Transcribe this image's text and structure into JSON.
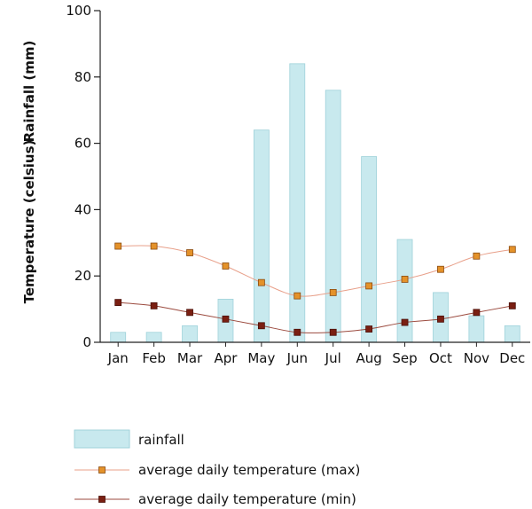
{
  "chart_data": {
    "type": "bar",
    "title": "",
    "ylabel_top": "Rainfall (mm)",
    "ylabel_bottom": "Temperature (celsius)",
    "xlabel": "",
    "ylim": [
      0,
      100
    ],
    "yticks": [
      0,
      20,
      40,
      60,
      80,
      100
    ],
    "categories": [
      "Jan",
      "Feb",
      "Mar",
      "Apr",
      "May",
      "Jun",
      "Jul",
      "Aug",
      "Sep",
      "Oct",
      "Nov",
      "Dec"
    ],
    "series": [
      {
        "name": "rainfall",
        "kind": "bar",
        "color": "#c8e9ee",
        "stroke": "#9fd2da",
        "values": [
          3,
          3,
          5,
          13,
          64,
          84,
          76,
          56,
          31,
          15,
          8,
          5
        ]
      },
      {
        "name": "average daily temperature (max)",
        "kind": "line",
        "color": "#e4922a",
        "line_color": "#e8a08a",
        "values": [
          29,
          29,
          27,
          23,
          18,
          14,
          15,
          17,
          19,
          22,
          26,
          28
        ]
      },
      {
        "name": "average daily temperature (min)",
        "kind": "line",
        "color": "#7a1f12",
        "line_color": "#9b4a3e",
        "values": [
          12,
          11,
          9,
          7,
          5,
          3,
          3,
          4,
          6,
          7,
          9,
          11
        ]
      }
    ],
    "legend": {
      "position": "bottom-left"
    }
  }
}
